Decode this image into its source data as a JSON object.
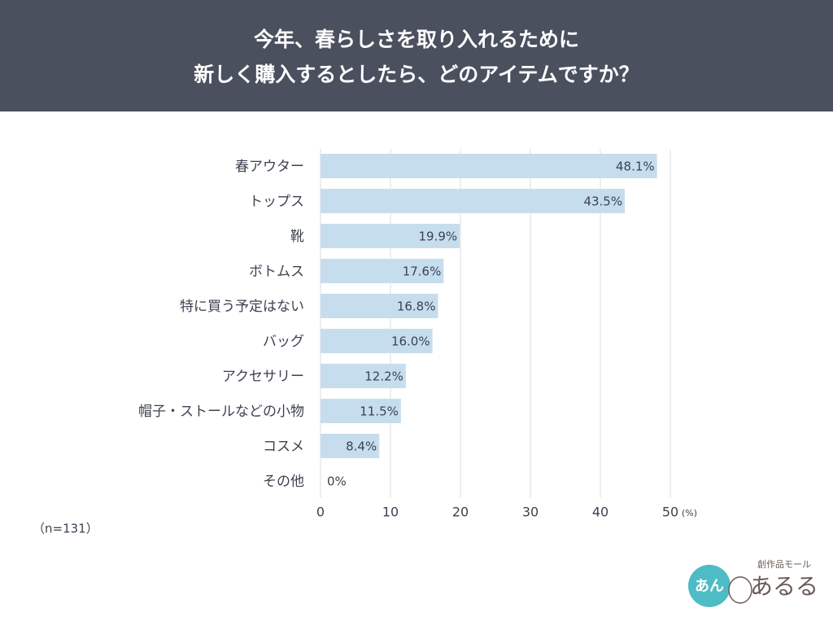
{
  "chart_data": {
    "type": "bar",
    "orientation": "horizontal",
    "title": [
      "今年、春らしさを取り入れるために",
      "新しく購入するとしたら、どのアイテムですか？"
    ],
    "categories": [
      "春アウター",
      "トップス",
      "靴",
      "ボトムス",
      "特に買う予定はない",
      "バッグ",
      "アクセサリー",
      "帽子・ストールなどの小物",
      "コスメ",
      "その他"
    ],
    "values": [
      48.1,
      43.5,
      19.9,
      17.6,
      16.8,
      16.0,
      12.2,
      11.5,
      8.4,
      0
    ],
    "value_labels": [
      "48.1%",
      "43.5%",
      "19.9%",
      "17.6%",
      "16.8%",
      "16.0%",
      "12.2%",
      "11.5%",
      "8.4%",
      "0%"
    ],
    "color": "#c6ddee",
    "xlim": [
      0,
      50
    ],
    "xticks": [
      0,
      10,
      20,
      30,
      40,
      50
    ],
    "x_unit": "(%)",
    "grid": true,
    "sample_size": "（n=131）",
    "logo": {
      "tagline": "創作品モール",
      "name": "あるる",
      "mark": "あん"
    }
  }
}
